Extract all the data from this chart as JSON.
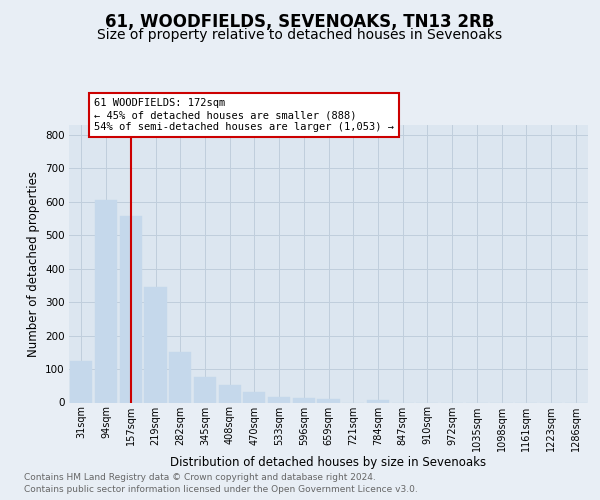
{
  "title": "61, WOODFIELDS, SEVENOAKS, TN13 2RB",
  "subtitle": "Size of property relative to detached houses in Sevenoaks",
  "xlabel": "Distribution of detached houses by size in Sevenoaks",
  "ylabel": "Number of detached properties",
  "categories": [
    "31sqm",
    "94sqm",
    "157sqm",
    "219sqm",
    "282sqm",
    "345sqm",
    "408sqm",
    "470sqm",
    "533sqm",
    "596sqm",
    "659sqm",
    "721sqm",
    "784sqm",
    "847sqm",
    "910sqm",
    "972sqm",
    "1035sqm",
    "1098sqm",
    "1161sqm",
    "1223sqm",
    "1286sqm"
  ],
  "values": [
    125,
    605,
    558,
    345,
    150,
    75,
    53,
    30,
    17,
    13,
    10,
    0,
    8,
    0,
    0,
    0,
    0,
    0,
    0,
    0,
    0
  ],
  "bar_color": "#c5d8eb",
  "vline_x": 2,
  "vline_color": "#cc0000",
  "annotation_line1": "61 WOODFIELDS: 172sqm",
  "annotation_line2": "← 45% of detached houses are smaller (888)",
  "annotation_line3": "54% of semi-detached houses are larger (1,053) →",
  "annotation_box_color": "#cc0000",
  "ylim": [
    0,
    830
  ],
  "yticks": [
    0,
    100,
    200,
    300,
    400,
    500,
    600,
    700,
    800
  ],
  "footer_line1": "Contains HM Land Registry data © Crown copyright and database right 2024.",
  "footer_line2": "Contains public sector information licensed under the Open Government Licence v3.0.",
  "background_color": "#e8eef5",
  "plot_bg_color": "#dce6f0",
  "grid_color": "#c0cedc",
  "title_fontsize": 12,
  "subtitle_fontsize": 10,
  "label_fontsize": 8.5,
  "tick_fontsize": 7.5,
  "footer_fontsize": 6.5
}
